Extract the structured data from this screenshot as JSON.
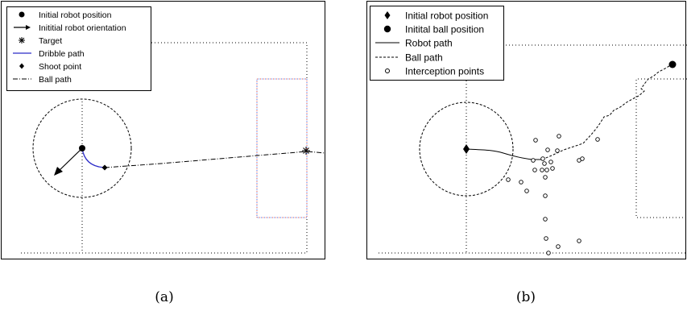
{
  "panel_a": {
    "legend": [
      {
        "label": "Initial robot position",
        "marker": "filled-circle"
      },
      {
        "label": "Inititial robot orientation",
        "marker": "arrow"
      },
      {
        "label": "Target",
        "marker": "asterisk"
      },
      {
        "label": "Dribble path",
        "marker": "solid-line",
        "color": "#2b2bc8"
      },
      {
        "label": "Shoot point",
        "marker": "diamond"
      },
      {
        "label": "Ball path",
        "marker": "dash-dot-line"
      }
    ],
    "caption": "(a)"
  },
  "panel_b": {
    "legend": [
      {
        "label": "Initial robot position",
        "marker": "diamond"
      },
      {
        "label": "Initital ball position",
        "marker": "filled-circle"
      },
      {
        "label": "Robot path",
        "marker": "solid-line"
      },
      {
        "label": "Ball path",
        "marker": "dashed-line"
      },
      {
        "label": "Interception points",
        "marker": "open-circle"
      }
    ],
    "caption": "(b)"
  },
  "colors": {
    "field_dots_blue": "#3b5bd8",
    "field_dots_red": "#d04040",
    "dribble_path": "#2b2bc8",
    "ink": "#000000"
  }
}
